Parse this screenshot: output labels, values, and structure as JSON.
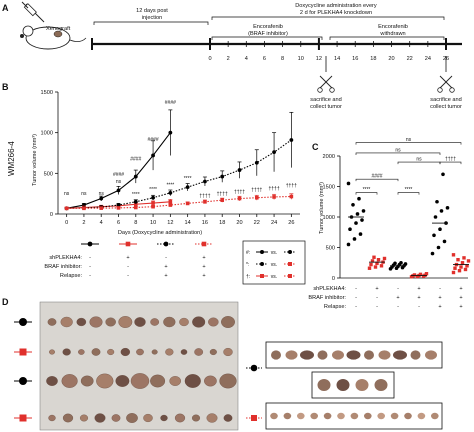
{
  "panel_labels": {
    "a": "A",
    "b": "B",
    "c": "C",
    "d": "D"
  },
  "panel_a": {
    "xenograft": "Xenograft",
    "phase1": "12 days post\ninjection",
    "dox": "Doxycycline administration every\n2 d for PLEKHA4 knockdown",
    "enco": "Encorafenib\n(BRAF inhibitor)",
    "withdrawn": "Encorafenib\nwithdrawn",
    "ticks": [
      "0",
      "2",
      "4",
      "6",
      "8",
      "10",
      "12",
      "14",
      "16",
      "18",
      "20",
      "22",
      "24",
      "26"
    ],
    "sac1": "sacrifice and\ncollect tumor",
    "sac2": "sacrifice and\ncollect tumor"
  },
  "chart_data": [
    {
      "type": "line",
      "title": "",
      "cell_line": "WM266-4",
      "xlabel": "Days (Doxycycline administration)",
      "ylabel": "Tumor volume (mm³)",
      "xlim": [
        -1,
        27
      ],
      "ylim": [
        0,
        1500
      ],
      "xticks": [
        0,
        2,
        4,
        6,
        8,
        10,
        12,
        14,
        16,
        18,
        20,
        22,
        24,
        26
      ],
      "yticks": [
        0,
        500,
        1000,
        1500
      ],
      "series": [
        {
          "color": "#000000",
          "style": "solid",
          "marker": "circle",
          "x": [
            0,
            2,
            4,
            6,
            8,
            10,
            12
          ],
          "y": [
            70,
            110,
            190,
            290,
            460,
            720,
            1000
          ],
          "err": [
            10,
            20,
            30,
            50,
            80,
            180,
            280
          ]
        },
        {
          "color": "#e0302c",
          "style": "solid",
          "marker": "square",
          "x": [
            0,
            2,
            4,
            6,
            8,
            10,
            12
          ],
          "y": [
            70,
            80,
            90,
            100,
            120,
            135,
            150
          ],
          "err": [
            10,
            12,
            14,
            16,
            20,
            25,
            30
          ]
        },
        {
          "color": "#000000",
          "style": "dotted",
          "marker": "circle",
          "x": [
            0,
            2,
            4,
            6,
            8,
            10,
            12,
            14,
            16,
            18,
            20,
            22,
            24,
            26
          ],
          "y": [
            70,
            75,
            85,
            110,
            150,
            200,
            260,
            330,
            400,
            460,
            540,
            630,
            760,
            910
          ],
          "err": [
            10,
            12,
            15,
            20,
            25,
            30,
            35,
            45,
            55,
            70,
            100,
            160,
            240,
            340
          ]
        },
        {
          "color": "#e0302c",
          "style": "dotted",
          "marker": "square",
          "x": [
            0,
            2,
            4,
            6,
            8,
            10,
            12,
            14,
            16,
            18,
            20,
            22,
            24,
            26
          ],
          "y": [
            70,
            70,
            72,
            75,
            80,
            90,
            110,
            130,
            150,
            170,
            190,
            200,
            210,
            215
          ],
          "err": [
            8,
            8,
            9,
            10,
            10,
            12,
            15,
            18,
            22,
            25,
            28,
            30,
            32,
            34
          ]
        }
      ],
      "annotations": [
        {
          "x": 0,
          "text": "ns"
        },
        {
          "x": 2,
          "text": "ns"
        },
        {
          "x": 4,
          "text": "ns"
        },
        {
          "x": 6,
          "text": "ns"
        },
        {
          "x": 6,
          "text": "####"
        },
        {
          "x": 8,
          "text": "####"
        },
        {
          "x": 10,
          "text": "####"
        },
        {
          "x": 12,
          "text": "####"
        },
        {
          "x": 8,
          "text": "****"
        },
        {
          "x": 10,
          "text": "****"
        },
        {
          "x": 12,
          "text": "****"
        },
        {
          "x": 14,
          "text": "****"
        },
        {
          "x": 16,
          "text": "††††"
        },
        {
          "x": 18,
          "text": "††††"
        },
        {
          "x": 20,
          "text": "††††"
        },
        {
          "x": 22,
          "text": "††††"
        },
        {
          "x": 24,
          "text": "††††"
        },
        {
          "x": 26,
          "text": "††††"
        }
      ],
      "legend": [
        {
          "symbol": "#:",
          "text": "vs."
        },
        {
          "symbol": "*:",
          "text": "vs."
        },
        {
          "symbol": "†:",
          "text": "vs."
        }
      ],
      "design_rows": [
        {
          "label": "shPLEKHA4:",
          "values": [
            "-",
            "+",
            "-",
            "+"
          ]
        },
        {
          "label": "BRAF inhibitor:",
          "values": [
            "-",
            "-",
            "+",
            "+"
          ]
        },
        {
          "label": "Relapse:",
          "values": [
            "-",
            "-",
            "+",
            "+"
          ]
        }
      ]
    },
    {
      "type": "scatter",
      "title": "",
      "ylabel": "Tumor volume (mm³)",
      "ylim": [
        0,
        2000
      ],
      "yticks": [
        0,
        500,
        1000,
        1500,
        2000
      ],
      "groups": [
        {
          "color": "#000000",
          "values": [
            550,
            640,
            720,
            800,
            900,
            950,
            1000,
            1050,
            1100,
            1200,
            1300,
            1550
          ]
        },
        {
          "color": "#e0302c",
          "values": [
            160,
            180,
            200,
            220,
            240,
            260,
            280,
            300,
            320,
            340
          ]
        },
        {
          "color": "#000000",
          "values": [
            150,
            160,
            170,
            180,
            190,
            200,
            210,
            220,
            230,
            240,
            250
          ]
        },
        {
          "color": "#e0302c",
          "values": [
            20,
            25,
            30,
            35,
            40,
            45,
            50,
            60,
            70
          ]
        },
        {
          "color": "#000000",
          "values": [
            400,
            500,
            600,
            700,
            800,
            900,
            1000,
            1100,
            1150,
            1250,
            1700
          ]
        },
        {
          "color": "#e0302c",
          "values": [
            90,
            120,
            140,
            160,
            180,
            200,
            220,
            250,
            280,
            300,
            330,
            380
          ]
        }
      ],
      "brackets": [
        {
          "from": 0,
          "to": 1,
          "text": "****"
        },
        {
          "from": 0,
          "to": 2,
          "text": "####"
        },
        {
          "from": 2,
          "to": 3,
          "text": "****"
        },
        {
          "from": 2,
          "to": 4,
          "text": "ns"
        },
        {
          "from": 0,
          "to": 4,
          "text": "ns"
        },
        {
          "from": 0,
          "to": 4,
          "text": "ns"
        },
        {
          "from": 4,
          "to": 5,
          "text": "††††"
        }
      ],
      "design_rows": [
        {
          "label": "shPLEKHA4:",
          "values": [
            "-",
            "+",
            "-",
            "+",
            "-",
            "+"
          ]
        },
        {
          "label": "BRAF inhibitor:",
          "values": [
            "-",
            "-",
            "+",
            "+",
            "+",
            "+"
          ]
        },
        {
          "label": "Relapse:",
          "values": [
            "-",
            "-",
            "-",
            "-",
            "+",
            "+"
          ]
        }
      ]
    }
  ],
  "panel_d": {
    "rows_left": [
      {
        "color": "#000000",
        "marker": "circle",
        "count": 13
      },
      {
        "color": "#e0302c",
        "marker": "square",
        "count": 13
      },
      {
        "color": "#000000",
        "marker": "circle",
        "count": 11
      },
      {
        "color": "#e0302c",
        "marker": "square",
        "count": 12
      }
    ]
  }
}
